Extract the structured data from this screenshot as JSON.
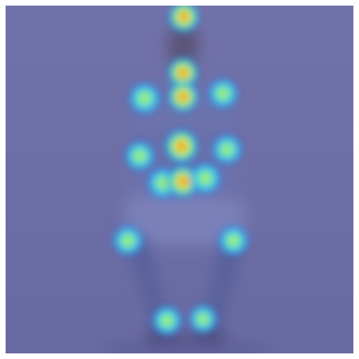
{
  "image": {
    "subject": "person-sitting",
    "overlay": "pose-keypoint-heatmap",
    "background_color": "#6f6fa8",
    "heat_colors": [
      "#2b2bd6",
      "#19c9ff",
      "#56f07a",
      "#f0f03a",
      "#ff8a1e",
      "#e22a14"
    ]
  }
}
